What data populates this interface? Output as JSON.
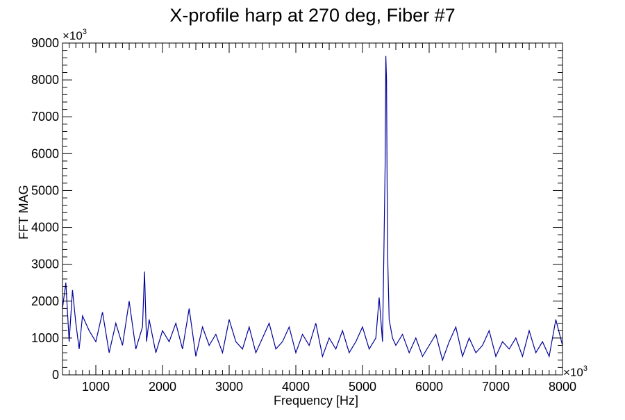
{
  "chart_data": {
    "type": "line",
    "title": "X-profile harp at 270 deg, Fiber #7",
    "xlabel": "Frequency [Hz]",
    "ylabel": "FFT MAG",
    "x_scale_label": "×10",
    "x_scale_exp": "3",
    "y_scale_label": "×10",
    "y_scale_exp": "3",
    "xlim": [
      500,
      8000
    ],
    "ylim": [
      0,
      9000
    ],
    "x_ticks": [
      1000,
      2000,
      3000,
      4000,
      5000,
      6000,
      7000,
      8000
    ],
    "x_tick_labels": [
      "1000",
      "2000",
      "3000",
      "4000",
      "5000",
      "6000",
      "7000",
      "8000"
    ],
    "y_ticks": [
      0,
      1000,
      2000,
      3000,
      4000,
      5000,
      6000,
      7000,
      8000,
      9000
    ],
    "y_tick_labels": [
      "0",
      "1000",
      "2000",
      "3000",
      "4000",
      "5000",
      "6000",
      "7000",
      "8000",
      "9000"
    ],
    "grid": false,
    "legend": "none",
    "line_color": "#000099",
    "series": [
      {
        "x": [
          500,
          550,
          600,
          650,
          700,
          750,
          800,
          900,
          1000,
          1100,
          1200,
          1300,
          1400,
          1500,
          1600,
          1700,
          1730,
          1760,
          1800,
          1900,
          2000,
          2100,
          2200,
          2300,
          2400,
          2500,
          2600,
          2700,
          2800,
          2900,
          3000,
          3100,
          3200,
          3300,
          3400,
          3500,
          3600,
          3700,
          3800,
          3900,
          4000,
          4100,
          4200,
          4300,
          4400,
          4500,
          4600,
          4700,
          4800,
          4900,
          5000,
          5100,
          5200,
          5250,
          5300,
          5320,
          5340,
          5350,
          5360,
          5370,
          5380,
          5400,
          5450,
          5500,
          5600,
          5700,
          5800,
          5900,
          6000,
          6100,
          6200,
          6300,
          6400,
          6500,
          6600,
          6700,
          6800,
          6900,
          7000,
          7100,
          7200,
          7300,
          7400,
          7500,
          7600,
          7700,
          7800,
          7900,
          8000
        ],
        "y": [
          1800,
          2500,
          900,
          2300,
          1400,
          700,
          1600,
          1200,
          900,
          1700,
          600,
          1400,
          800,
          2000,
          700,
          1300,
          2800,
          900,
          1500,
          600,
          1200,
          900,
          1400,
          700,
          1800,
          500,
          1300,
          800,
          1100,
          600,
          1500,
          900,
          700,
          1300,
          600,
          1000,
          1400,
          700,
          900,
          1300,
          600,
          1100,
          800,
          1400,
          500,
          1000,
          700,
          1200,
          600,
          900,
          1300,
          700,
          1000,
          2100,
          900,
          3200,
          5700,
          8650,
          8000,
          5000,
          3000,
          1500,
          1000,
          800,
          1100,
          600,
          1000,
          500,
          800,
          1100,
          400,
          900,
          1300,
          500,
          1000,
          600,
          800,
          1200,
          500,
          900,
          700,
          1000,
          500,
          1200,
          600,
          900,
          500,
          1500,
          800
        ]
      }
    ]
  }
}
